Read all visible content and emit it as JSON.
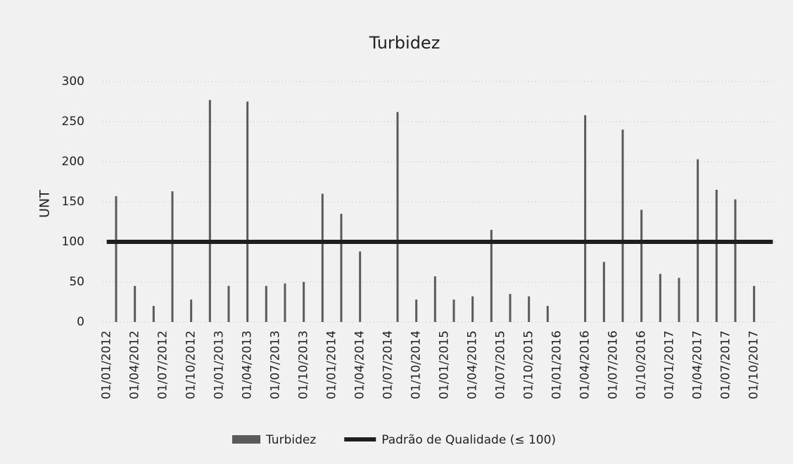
{
  "chart_data": {
    "type": "bar",
    "title": "Turbidez",
    "y_label": "UNT",
    "categories": [
      "01/01/2012",
      null,
      null,
      "01/04/2012",
      null,
      null,
      "01/07/2012",
      null,
      null,
      "01/10/2012",
      null,
      null,
      "01/01/2013",
      null,
      null,
      "01/04/2013",
      null,
      null,
      "01/07/2013",
      null,
      null,
      "01/10/2013",
      null,
      null,
      "01/01/2014",
      null,
      null,
      "01/04/2014",
      null,
      null,
      "01/07/2014",
      null,
      null,
      "01/10/2014",
      null,
      null,
      "01/01/2015",
      null,
      null,
      "01/04/2015",
      null,
      null,
      "01/07/2015",
      null,
      null,
      "01/10/2015",
      null,
      null,
      "01/01/2016",
      null,
      null,
      "01/04/2016",
      null,
      null,
      "01/07/2016",
      null,
      null,
      "01/10/2016",
      null,
      null,
      "01/01/2017",
      null,
      null,
      "01/04/2017",
      null,
      null,
      "01/07/2017",
      null,
      null,
      "01/10/2017",
      null,
      null
    ],
    "series": [
      {
        "name": "Turbidez",
        "type": "bar",
        "color": "#5a5a5a",
        "values": [
          null,
          157,
          null,
          45,
          null,
          20,
          null,
          163,
          null,
          28,
          null,
          277,
          null,
          45,
          null,
          275,
          null,
          45,
          null,
          48,
          null,
          50,
          null,
          160,
          null,
          135,
          null,
          88,
          null,
          null,
          null,
          262,
          null,
          28,
          null,
          57,
          null,
          28,
          null,
          32,
          null,
          115,
          null,
          35,
          null,
          32,
          null,
          20,
          null,
          null,
          null,
          258,
          null,
          75,
          null,
          240,
          null,
          140,
          null,
          60,
          null,
          55,
          null,
          203,
          null,
          165,
          null,
          153,
          null,
          45,
          null,
          null
        ]
      },
      {
        "name": "Padrão de Qualidade (≤ 100)",
        "type": "line",
        "color": "#1e1e1e",
        "values": [
          100,
          100,
          100,
          100,
          100,
          100,
          100,
          100,
          100,
          100,
          100,
          100,
          100,
          100,
          100,
          100,
          100,
          100,
          100,
          100,
          100,
          100,
          100,
          100,
          100,
          100,
          100,
          100,
          100,
          100,
          100,
          100,
          100,
          100,
          100,
          100,
          100,
          100,
          100,
          100,
          100,
          100,
          100,
          100,
          100,
          100,
          100,
          100,
          100,
          100,
          100,
          100,
          100,
          100,
          100,
          100,
          100,
          100,
          100,
          100,
          100,
          100,
          100,
          100,
          100,
          100,
          100,
          100,
          100,
          100,
          100,
          100
        ]
      }
    ],
    "ylim": [
      0,
      300
    ],
    "yticks": [
      0,
      50,
      100,
      150,
      200,
      250,
      300
    ],
    "grid": true,
    "legend": "bottom"
  }
}
